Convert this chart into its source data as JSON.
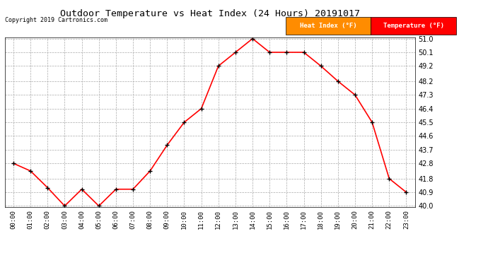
{
  "title": "Outdoor Temperature vs Heat Index (24 Hours) 20191017",
  "copyright": "Copyright 2019 Cartronics.com",
  "hours": [
    "00:00",
    "01:00",
    "02:00",
    "03:00",
    "04:00",
    "05:00",
    "06:00",
    "07:00",
    "08:00",
    "09:00",
    "10:00",
    "11:00",
    "12:00",
    "13:00",
    "14:00",
    "15:00",
    "16:00",
    "17:00",
    "18:00",
    "19:00",
    "20:00",
    "21:00",
    "22:00",
    "23:00"
  ],
  "temperature": [
    42.8,
    42.3,
    41.2,
    40.0,
    41.1,
    40.0,
    41.1,
    41.1,
    42.3,
    44.0,
    45.5,
    46.4,
    49.2,
    50.1,
    51.0,
    50.1,
    50.1,
    50.1,
    49.2,
    48.2,
    47.3,
    45.5,
    41.8,
    40.9
  ],
  "heat_index": [
    42.8,
    42.3,
    41.2,
    40.0,
    41.1,
    40.0,
    41.1,
    41.1,
    42.3,
    44.0,
    45.5,
    46.4,
    49.2,
    50.1,
    51.0,
    50.1,
    50.1,
    50.1,
    49.2,
    48.2,
    47.3,
    45.5,
    41.8,
    40.9
  ],
  "temp_color": "#ff0000",
  "heat_index_color": "#000000",
  "ylim_min": 40.0,
  "ylim_max": 51.0,
  "yticks": [
    40.0,
    40.9,
    41.8,
    42.8,
    43.7,
    44.6,
    45.5,
    46.4,
    47.3,
    48.2,
    49.2,
    50.1,
    51.0
  ],
  "background_color": "#ffffff",
  "plot_bg_color": "#ffffff",
  "grid_color": "#aaaaaa",
  "legend_heat_index_bg": "#ff8c00",
  "legend_temp_bg": "#ff0000",
  "legend_text_color": "#ffffff"
}
